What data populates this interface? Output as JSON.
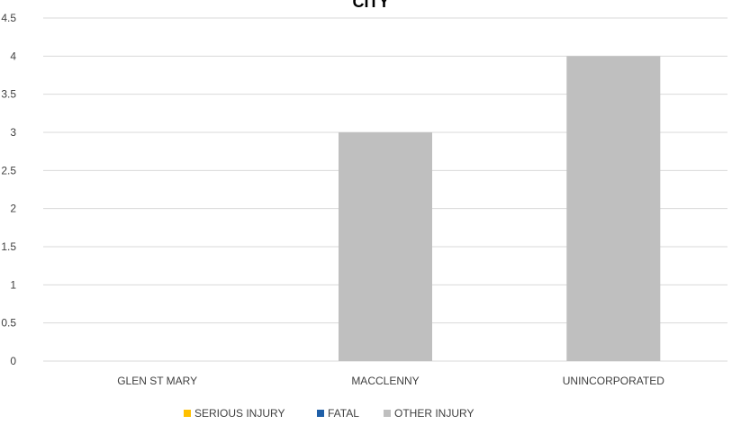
{
  "chart_data": {
    "type": "bar",
    "title": "CITY",
    "xlabel": "",
    "ylabel": "",
    "categories": [
      "GLEN ST MARY",
      "MACCLENNY",
      "UNINCORPORATED"
    ],
    "series": [
      {
        "name": "SERIOUS INJURY",
        "values": [
          0,
          0,
          0
        ],
        "color": "#FFC000"
      },
      {
        "name": "FATAL",
        "values": [
          0,
          0,
          0
        ],
        "color": "#1F5FA8"
      },
      {
        "name": "OTHER INJURY",
        "values": [
          0,
          3,
          4
        ],
        "color": "#BFBFBF"
      }
    ],
    "ylim": [
      0,
      4.5
    ],
    "yticks": [
      "0",
      "0.5",
      "1",
      "1.5",
      "2",
      "2.5",
      "3",
      "3.5",
      "4",
      "4.5"
    ],
    "grid": true,
    "legend_position": "bottom"
  },
  "colors": {
    "gridline": "#D9D9D9",
    "text": "#404040"
  }
}
